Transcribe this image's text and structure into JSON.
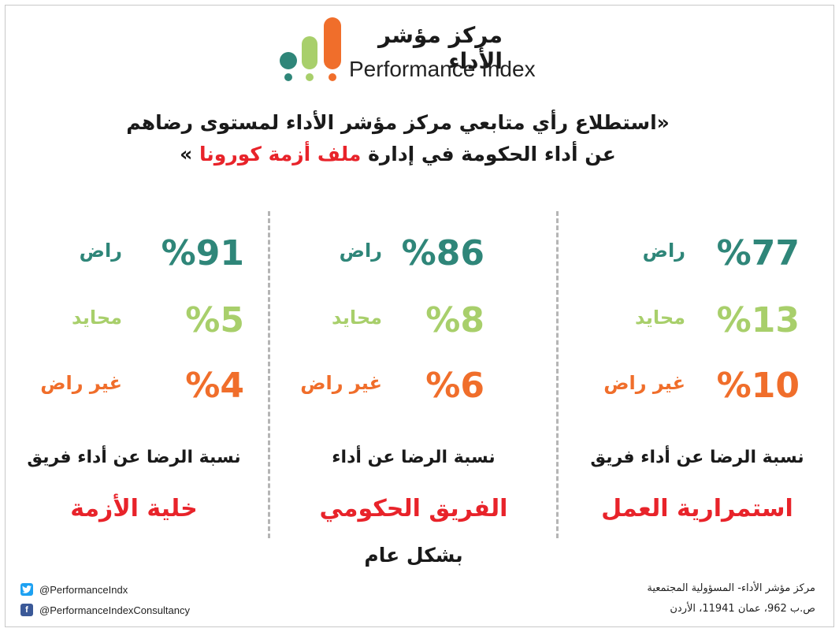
{
  "logo": {
    "name_ar": "مركز مؤشر الأداء",
    "name_en": "Performance Index",
    "colors": [
      "#2f8679",
      "#a8cf6b",
      "#f06e2b"
    ]
  },
  "headline": {
    "line1": "«استطلاع رأي متابعي مركز مؤشر الأداء لمستوى رضاهم",
    "line2_prefix": "عن أداء الحكومة في إدارة ",
    "line2_highlight": "ملف أزمة كورونا",
    "line2_suffix": " »"
  },
  "colors": {
    "satisfied": "#2f8679",
    "neutral": "#a8cf6b",
    "dissatisfied": "#f06e2b",
    "highlight": "#e8232a"
  },
  "columns": [
    {
      "satisfied": {
        "pct": "%77",
        "value": 77,
        "label": "راض"
      },
      "neutral": {
        "pct": "%13",
        "value": 13,
        "label": "محايد"
      },
      "dissatisfied": {
        "pct": "%10",
        "value": 10,
        "label": "غير راض"
      },
      "description": "نسبة الرضا عن أداء فريق",
      "team": "استمرارية العمل"
    },
    {
      "satisfied": {
        "pct": "%86",
        "value": 86,
        "label": "راض"
      },
      "neutral": {
        "pct": "%8",
        "value": 8,
        "label": "محايد"
      },
      "dissatisfied": {
        "pct": "%6",
        "value": 6,
        "label": "غير راض"
      },
      "description": "نسبة الرضا عن أداء",
      "team": "الفريق الحكومي",
      "suffix": "بشكل عام"
    },
    {
      "satisfied": {
        "pct": "%91",
        "value": 91,
        "label": "راض"
      },
      "neutral": {
        "pct": "%5",
        "value": 5,
        "label": "محايد"
      },
      "dissatisfied": {
        "pct": "%4",
        "value": 4,
        "label": "غير راض"
      },
      "description": "نسبة الرضا عن أداء فريق",
      "team": "خلية الأزمة"
    }
  ],
  "footer": {
    "twitter": "@PerformanceIndx",
    "facebook": "@PerformanceIndexConsultancy",
    "twitter_icon": "twitter-icon",
    "facebook_icon": "facebook-icon",
    "address_line1": "مركز مؤشر الأداء- المسؤولية المجتمعية",
    "address_line2": "ص.ب 962، عمان 11941، الأردن"
  }
}
